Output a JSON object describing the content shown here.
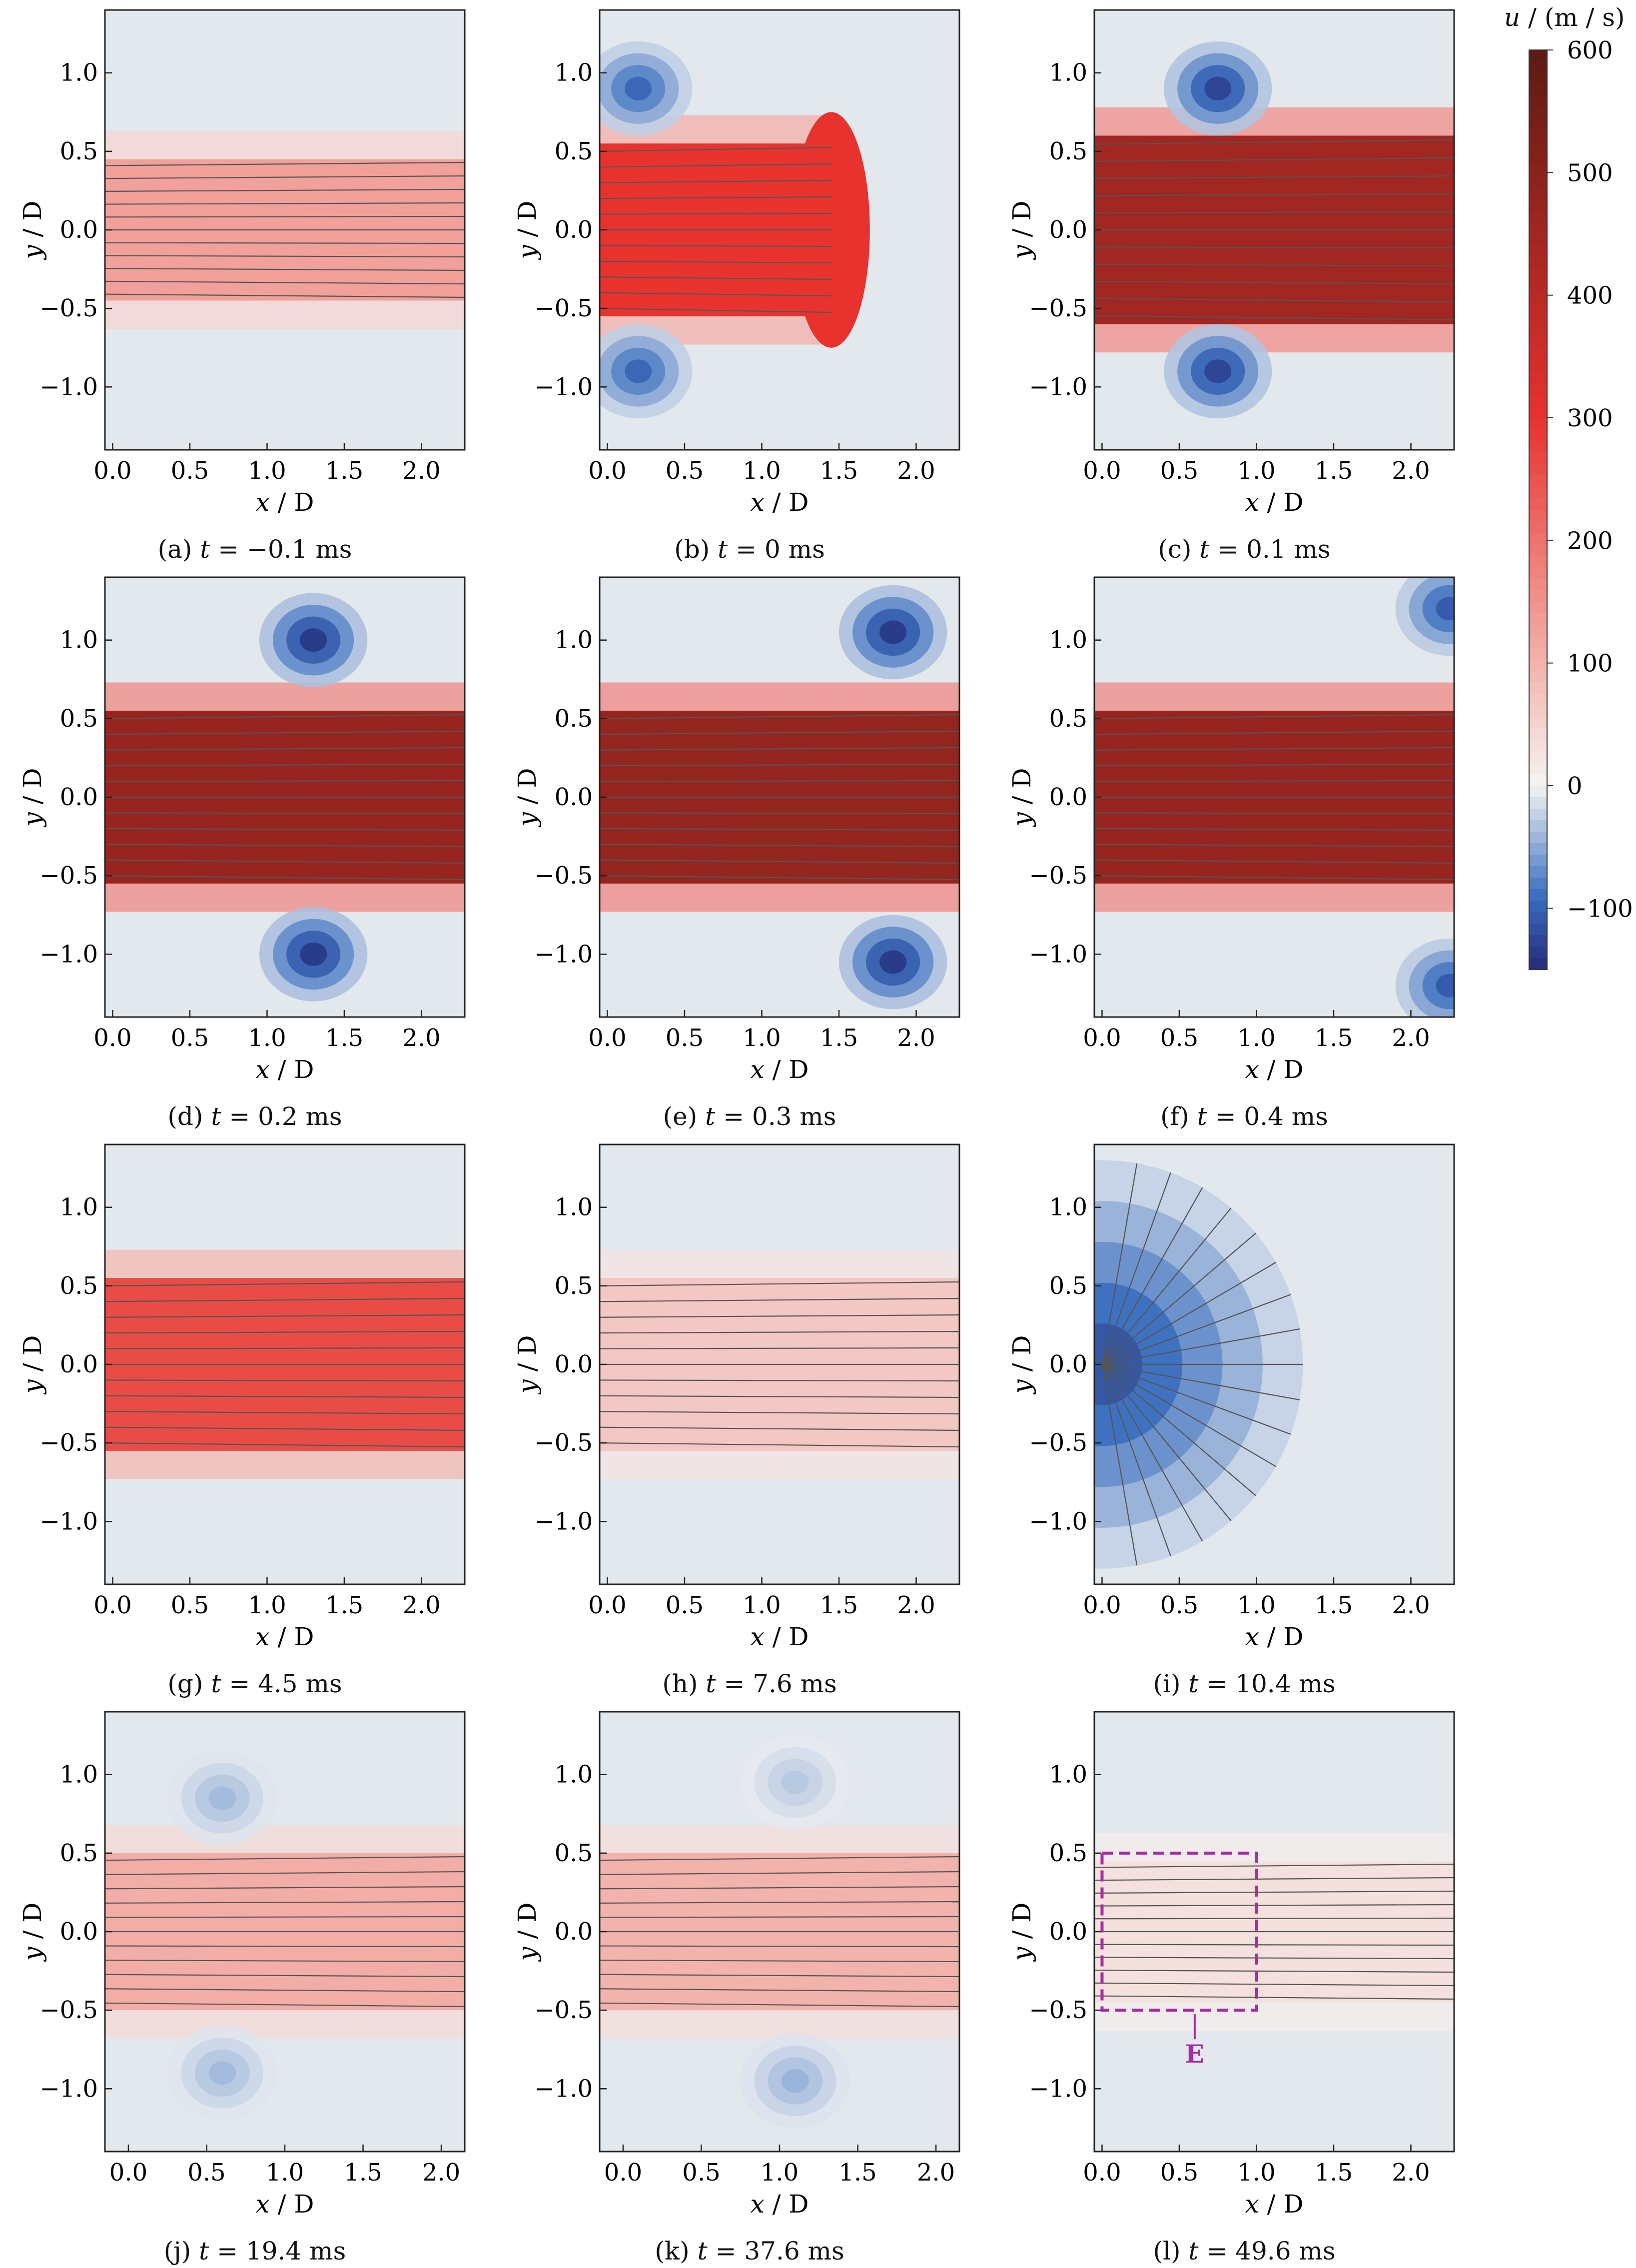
{
  "colorbar": {
    "label_var": "u",
    "label_units": " / (m / s)",
    "ticks": [
      600,
      500,
      400,
      300,
      200,
      100,
      0,
      -100
    ],
    "range": [
      -150,
      600
    ],
    "colors": {
      "neg_max": "#262a7a",
      "neg_mid": "#3a6fbf",
      "zero": "#f4f4f2",
      "pos_low": "#f3b3ad",
      "pos_mid": "#e7322e",
      "pos_max": "#5c1a14"
    }
  },
  "axes": {
    "xlabel_var_x": "x",
    "xlabel_var_y": "y",
    "label_slash_d": " / D",
    "xlim": [
      -0.05,
      2.28
    ],
    "ylim": [
      -1.4,
      1.4
    ],
    "xticks": [
      "0.0",
      "0.5",
      "1.0",
      "1.5",
      "2.0"
    ],
    "yticks": [
      "1.0",
      "0.5",
      "0.0",
      "−0.5",
      "−1.0"
    ]
  },
  "panels": [
    {
      "id": "a",
      "caption_prefix": "(a) ",
      "caption_var": "t",
      "caption_rest": " = −0.1 ms",
      "time_ms": -0.1
    },
    {
      "id": "b",
      "caption_prefix": "(b) ",
      "caption_var": "t",
      "caption_rest": " = 0 ms",
      "time_ms": 0
    },
    {
      "id": "c",
      "caption_prefix": "(c) ",
      "caption_var": "t",
      "caption_rest": " = 0.1 ms",
      "time_ms": 0.1
    },
    {
      "id": "d",
      "caption_prefix": "(d) ",
      "caption_var": "t",
      "caption_rest": " = 0.2 ms",
      "time_ms": 0.2
    },
    {
      "id": "e",
      "caption_prefix": "(e) ",
      "caption_var": "t",
      "caption_rest": " = 0.3 ms",
      "time_ms": 0.3
    },
    {
      "id": "f",
      "caption_prefix": "(f) ",
      "caption_var": "t",
      "caption_rest": " = 0.4 ms",
      "time_ms": 0.4
    },
    {
      "id": "g",
      "caption_prefix": "(g) ",
      "caption_var": "t",
      "caption_rest": " = 4.5 ms",
      "time_ms": 4.5
    },
    {
      "id": "h",
      "caption_prefix": "(h) ",
      "caption_var": "t",
      "caption_rest": " = 7.6 ms",
      "time_ms": 7.6
    },
    {
      "id": "i",
      "caption_prefix": "(i) ",
      "caption_var": "t",
      "caption_rest": " = 10.4 ms",
      "time_ms": 10.4
    },
    {
      "id": "j",
      "caption_prefix": "(j) ",
      "caption_var": "t",
      "caption_rest": " = 19.4 ms",
      "time_ms": 19.4
    },
    {
      "id": "k",
      "caption_prefix": "(k) ",
      "caption_var": "t",
      "caption_rest": " = 37.6 ms",
      "time_ms": 37.6
    },
    {
      "id": "l",
      "caption_prefix": "(l) ",
      "caption_var": "t",
      "caption_rest": " = 49.6 ms",
      "time_ms": 49.6,
      "annotation": "E"
    }
  ],
  "chart_data": [
    {
      "type": "heatmap",
      "panel": "a",
      "variable": "u",
      "units": "m / s",
      "xlabel": "x / D",
      "ylabel": "y / D",
      "xlim": [
        -0.05,
        2.28
      ],
      "ylim": [
        -1.4,
        1.4
      ],
      "jet": {
        "x_end": 2.28,
        "half_width": 0.45,
        "u_core": 130
      },
      "vortices": [],
      "streamlines": "axial lines within |y/D| < 0.45"
    },
    {
      "type": "heatmap",
      "panel": "b",
      "variable": "u",
      "units": "m / s",
      "xlabel": "x / D",
      "ylabel": "y / D",
      "xlim": [
        -0.05,
        2.28
      ],
      "ylim": [
        -1.4,
        1.4
      ],
      "jet": {
        "front_x": 1.45,
        "half_width": 0.55,
        "u_core": 300
      },
      "vortices": [
        {
          "x": 0.2,
          "y": 0.9,
          "u_min": -100
        },
        {
          "x": 0.2,
          "y": -0.9,
          "u_min": -100
        }
      ]
    },
    {
      "type": "heatmap",
      "panel": "c",
      "variable": "u",
      "units": "m / s",
      "xlabel": "x / D",
      "ylabel": "y / D",
      "xlim": [
        -0.05,
        2.28
      ],
      "ylim": [
        -1.4,
        1.4
      ],
      "jet": {
        "front_x": 2.28,
        "half_width": 0.6,
        "u_core": 450
      },
      "vortices": [
        {
          "x": 0.75,
          "y": 0.9,
          "u_min": -130
        },
        {
          "x": 0.75,
          "y": -0.9,
          "u_min": -130
        }
      ]
    },
    {
      "type": "heatmap",
      "panel": "d",
      "variable": "u",
      "units": "m / s",
      "xlabel": "x / D",
      "ylabel": "y / D",
      "xlim": [
        -0.05,
        2.28
      ],
      "ylim": [
        -1.4,
        1.4
      ],
      "jet": {
        "front_x": 2.28,
        "half_width": 0.55,
        "u_core": 470
      },
      "vortices": [
        {
          "x": 1.3,
          "y": 1.0,
          "u_min": -140
        },
        {
          "x": 1.3,
          "y": -1.0,
          "u_min": -140
        }
      ]
    },
    {
      "type": "heatmap",
      "panel": "e",
      "variable": "u",
      "units": "m / s",
      "xlabel": "x / D",
      "ylabel": "y / D",
      "xlim": [
        -0.05,
        2.28
      ],
      "ylim": [
        -1.4,
        1.4
      ],
      "jet": {
        "front_x": 2.28,
        "half_width": 0.55,
        "u_core": 480
      },
      "vortices": [
        {
          "x": 1.85,
          "y": 1.05,
          "u_min": -140
        },
        {
          "x": 1.85,
          "y": -1.05,
          "u_min": -140
        }
      ]
    },
    {
      "type": "heatmap",
      "panel": "f",
      "variable": "u",
      "units": "m / s",
      "xlabel": "x / D",
      "ylabel": "y / D",
      "xlim": [
        -0.05,
        2.28
      ],
      "ylim": [
        -1.4,
        1.4
      ],
      "jet": {
        "front_x": 2.28,
        "half_width": 0.55,
        "u_core": 470
      },
      "vortices": [
        {
          "x": 2.25,
          "y": 1.2,
          "u_min": -110
        },
        {
          "x": 2.25,
          "y": -1.2,
          "u_min": -110
        }
      ]
    },
    {
      "type": "heatmap",
      "panel": "g",
      "variable": "u",
      "units": "m / s",
      "xlabel": "x / D",
      "ylabel": "y / D",
      "xlim": [
        -0.05,
        2.28
      ],
      "ylim": [
        -1.4,
        1.4
      ],
      "jet": {
        "front_x": 2.28,
        "half_width": 0.55,
        "u_core": 260
      },
      "vortices": []
    },
    {
      "type": "heatmap",
      "panel": "h",
      "variable": "u",
      "units": "m / s",
      "xlabel": "x / D",
      "ylabel": "y / D",
      "xlim": [
        -0.05,
        2.28
      ],
      "ylim": [
        -1.4,
        1.4
      ],
      "jet": {
        "front_x": 2.28,
        "half_width": 0.55,
        "u_core": 70
      },
      "vortices": []
    },
    {
      "type": "heatmap",
      "panel": "i",
      "variable": "u",
      "units": "m / s",
      "xlabel": "x / D",
      "ylabel": "y / D",
      "xlim": [
        -0.05,
        2.28
      ],
      "ylim": [
        -1.4,
        1.4
      ],
      "jet": {
        "front_x": 0,
        "half_width": 0,
        "u_core": 0
      },
      "inflow_sink": {
        "x": 0,
        "y": 0,
        "u_min": -110,
        "radius_x": 1.3
      },
      "vortices": []
    },
    {
      "type": "heatmap",
      "panel": "j",
      "variable": "u",
      "units": "m / s",
      "xlabel": "x / D",
      "ylabel": "y / D",
      "xlim": [
        -0.15,
        2.15
      ],
      "ylim": [
        -1.4,
        1.4
      ],
      "jet": {
        "front_x": 2.15,
        "half_width": 0.5,
        "u_core": 110
      },
      "vortices": [
        {
          "x": 0.6,
          "y": 0.85,
          "u_min": -40
        },
        {
          "x": 0.6,
          "y": -0.9,
          "u_min": -40
        }
      ]
    },
    {
      "type": "heatmap",
      "panel": "k",
      "variable": "u",
      "units": "m / s",
      "xlabel": "x / D",
      "ylabel": "y / D",
      "xlim": [
        -0.15,
        2.15
      ],
      "ylim": [
        -1.4,
        1.4
      ],
      "jet": {
        "front_x": 2.15,
        "half_width": 0.5,
        "u_core": 100
      },
      "vortices": [
        {
          "x": 1.1,
          "y": 0.95,
          "u_min": -30
        },
        {
          "x": 1.1,
          "y": -0.95,
          "u_min": -45
        }
      ]
    },
    {
      "type": "heatmap",
      "panel": "l",
      "variable": "u",
      "units": "m / s",
      "xlabel": "x / D",
      "ylabel": "y / D",
      "xlim": [
        -0.05,
        2.28
      ],
      "ylim": [
        -1.4,
        1.4
      ],
      "jet": {
        "front_x": 2.28,
        "half_width": 0.45,
        "u_core": 30
      },
      "vortices": [],
      "annotation": {
        "label": "E",
        "box_x": [
          0,
          1.0
        ],
        "box_y": [
          -0.5,
          0.5
        ]
      }
    }
  ]
}
